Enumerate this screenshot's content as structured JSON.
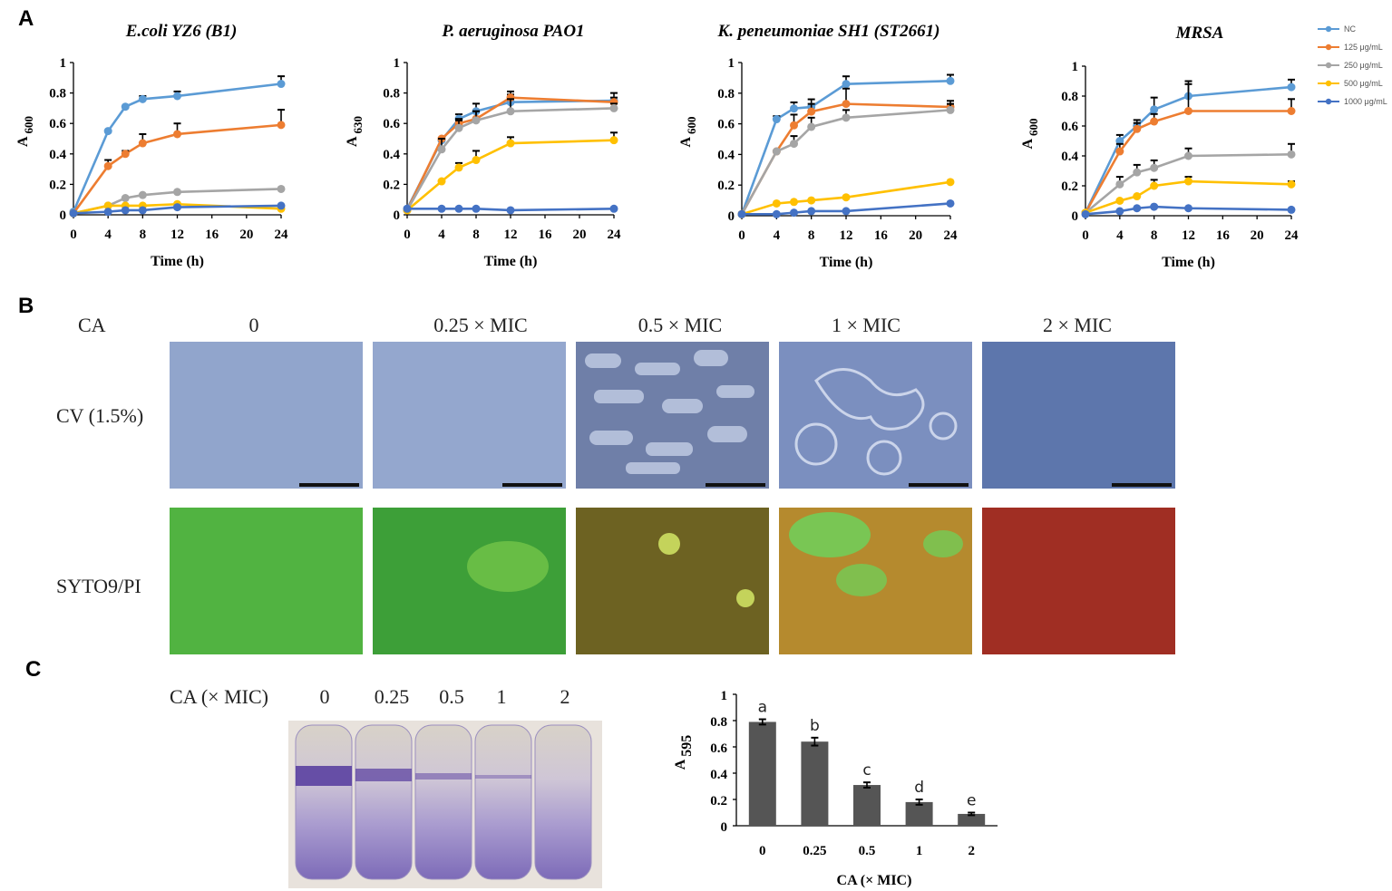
{
  "panel_labels": [
    "A",
    "B",
    "C"
  ],
  "legend": [
    {
      "label": "NC",
      "color": "#5b9bd5"
    },
    {
      "label": "125 μg/mL",
      "color": "#ed7d31"
    },
    {
      "label": "250 μg/mL",
      "color": "#a5a5a5"
    },
    {
      "label": "500 μg/mL",
      "color": "#ffc000"
    },
    {
      "label": "1000 μg/mL",
      "color": "#4472c4"
    }
  ],
  "panel_b": {
    "ca_label": "CA",
    "columns": [
      "0",
      "0.25 × MIC",
      "0.5 × MIC",
      "1 × MIC",
      "2 × MIC"
    ],
    "rows": [
      "CV (1.5%)",
      "SYTO9/PI"
    ]
  },
  "panel_c_photo": {
    "ca_label": "CA (× MIC)",
    "columns": [
      "0",
      "0.25",
      "0.5",
      "1",
      "2"
    ]
  },
  "chart_data": [
    {
      "type": "line",
      "title": "E.coli YZ6 (B1)",
      "xlabel": "Time (h)",
      "ylabel_main": "A",
      "ylabel_sub": "600",
      "xlim": [
        0,
        24
      ],
      "xticks": [
        0,
        4,
        8,
        12,
        16,
        20,
        24
      ],
      "ylim": [
        0,
        1
      ],
      "yticks": [
        0,
        0.2,
        0.4,
        0.6,
        0.8,
        1
      ],
      "x": [
        0,
        4,
        6,
        8,
        12,
        24
      ],
      "series": [
        {
          "name": "NC",
          "values": [
            0.02,
            0.55,
            0.71,
            0.76,
            0.78,
            0.86
          ],
          "err": [
            0,
            0,
            0,
            0.02,
            0.03,
            0.05
          ]
        },
        {
          "name": "125 μg/mL",
          "values": [
            0.01,
            0.32,
            0.4,
            0.47,
            0.53,
            0.59
          ],
          "err": [
            0,
            0.04,
            0.02,
            0.06,
            0.07,
            0.1
          ]
        },
        {
          "name": "250 μg/mL",
          "values": [
            0.01,
            0.06,
            0.11,
            0.13,
            0.15,
            0.17
          ],
          "err": [
            0,
            0,
            0,
            0,
            0,
            0
          ]
        },
        {
          "name": "500 μg/mL",
          "values": [
            0.01,
            0.06,
            0.06,
            0.06,
            0.07,
            0.04
          ],
          "err": [
            0,
            0,
            0,
            0,
            0,
            0
          ]
        },
        {
          "name": "1000 μg/mL",
          "values": [
            0.01,
            0.02,
            0.03,
            0.03,
            0.05,
            0.06
          ],
          "err": [
            0,
            0,
            0,
            0,
            0,
            0
          ]
        }
      ]
    },
    {
      "type": "line",
      "title": "P. aeruginosa PAO1",
      "xlabel": "Time (h)",
      "ylabel_main": "A",
      "ylabel_sub": "630",
      "xlim": [
        0,
        24
      ],
      "xticks": [
        0,
        4,
        8,
        12,
        16,
        20,
        24
      ],
      "ylim": [
        0,
        1
      ],
      "yticks": [
        0,
        0.2,
        0.4,
        0.6,
        0.8,
        1
      ],
      "x": [
        0,
        4,
        6,
        8,
        12,
        24
      ],
      "series": [
        {
          "name": "NC",
          "values": [
            0.04,
            0.49,
            0.63,
            0.68,
            0.74,
            0.75
          ],
          "err": [
            0,
            0,
            0.03,
            0.05,
            0.05,
            0.05
          ]
        },
        {
          "name": "125 μg/mL",
          "values": [
            0.03,
            0.5,
            0.6,
            0.63,
            0.77,
            0.74
          ],
          "err": [
            0,
            0,
            0.03,
            0.05,
            0.04,
            0.03
          ]
        },
        {
          "name": "250 μg/mL",
          "values": [
            0.03,
            0.43,
            0.57,
            0.62,
            0.68,
            0.7
          ],
          "err": [
            0,
            0.07,
            0.05,
            0.06,
            0.08,
            0.03
          ]
        },
        {
          "name": "500 μg/mL",
          "values": [
            0.03,
            0.22,
            0.31,
            0.36,
            0.47,
            0.49
          ],
          "err": [
            0,
            0,
            0.03,
            0.06,
            0.04,
            0.05
          ]
        },
        {
          "name": "1000 μg/mL",
          "values": [
            0.04,
            0.04,
            0.04,
            0.04,
            0.03,
            0.04
          ],
          "err": [
            0,
            0,
            0,
            0,
            0,
            0
          ]
        }
      ]
    },
    {
      "type": "line",
      "title": "K. peneumoniae SH1 (ST2661)",
      "xlabel": "Time (h)",
      "ylabel_main": "A",
      "ylabel_sub": "600",
      "xlim": [
        0,
        24
      ],
      "xticks": [
        0,
        4,
        8,
        12,
        16,
        20,
        24
      ],
      "ylim": [
        0,
        1
      ],
      "yticks": [
        0,
        0.2,
        0.4,
        0.6,
        0.8,
        1
      ],
      "x": [
        0,
        4,
        6,
        8,
        12,
        24
      ],
      "series": [
        {
          "name": "NC",
          "values": [
            0.01,
            0.63,
            0.7,
            0.71,
            0.86,
            0.88
          ],
          "err": [
            0,
            0.02,
            0.04,
            0.05,
            0.05,
            0.04
          ]
        },
        {
          "name": "125 μg/mL",
          "values": [
            0.01,
            0.42,
            0.59,
            0.68,
            0.73,
            0.71
          ],
          "err": [
            0,
            0,
            0.07,
            0.05,
            0.1,
            0.04
          ]
        },
        {
          "name": "250 μg/mL",
          "values": [
            0.01,
            0.42,
            0.47,
            0.58,
            0.64,
            0.69
          ],
          "err": [
            0,
            0,
            0.05,
            0.06,
            0.05,
            0.04
          ]
        },
        {
          "name": "500 μg/mL",
          "values": [
            0.01,
            0.08,
            0.09,
            0.1,
            0.12,
            0.22
          ],
          "err": [
            0,
            0,
            0,
            0,
            0,
            0
          ]
        },
        {
          "name": "1000 μg/mL",
          "values": [
            0.01,
            0.01,
            0.02,
            0.03,
            0.03,
            0.08
          ],
          "err": [
            0,
            0,
            0,
            0,
            0,
            0
          ]
        }
      ]
    },
    {
      "type": "line",
      "title": "MRSA",
      "xlabel": "Time (h)",
      "ylabel_main": "A",
      "ylabel_sub": "600",
      "xlim": [
        0,
        24
      ],
      "xticks": [
        0,
        4,
        8,
        12,
        16,
        20,
        24
      ],
      "ylim": [
        0,
        1
      ],
      "yticks": [
        0,
        0.2,
        0.4,
        0.6,
        0.8,
        1
      ],
      "x": [
        0,
        4,
        6,
        8,
        12,
        24
      ],
      "series": [
        {
          "name": "NC",
          "values": [
            0.02,
            0.5,
            0.6,
            0.71,
            0.8,
            0.86
          ],
          "err": [
            0,
            0.04,
            0.04,
            0.08,
            0.08,
            0.05
          ]
        },
        {
          "name": "125 μg/mL",
          "values": [
            0.02,
            0.43,
            0.58,
            0.63,
            0.7,
            0.7
          ],
          "err": [
            0,
            0.05,
            0.04,
            0.05,
            0.2,
            0.08
          ]
        },
        {
          "name": "250 μg/mL",
          "values": [
            0.02,
            0.21,
            0.29,
            0.32,
            0.4,
            0.41
          ],
          "err": [
            0,
            0.05,
            0.05,
            0.05,
            0.05,
            0.07
          ]
        },
        {
          "name": "500 μg/mL",
          "values": [
            0.02,
            0.1,
            0.13,
            0.2,
            0.23,
            0.21
          ],
          "err": [
            0,
            0,
            0,
            0.04,
            0.03,
            0.02
          ]
        },
        {
          "name": "1000 μg/mL",
          "values": [
            0.01,
            0.03,
            0.05,
            0.06,
            0.05,
            0.04
          ],
          "err": [
            0,
            0,
            0,
            0,
            0,
            0
          ]
        }
      ]
    },
    {
      "type": "bar",
      "title": "",
      "xlabel": "CA (× MIC)",
      "ylabel_main": "A",
      "ylabel_sub": "595",
      "categories": [
        "0",
        "0.25",
        "0.5",
        "1",
        "2"
      ],
      "values": [
        0.79,
        0.64,
        0.31,
        0.18,
        0.09
      ],
      "err": [
        0.02,
        0.03,
        0.02,
        0.02,
        0.01
      ],
      "significance": [
        "a",
        "b",
        "c",
        "d",
        "e"
      ],
      "ylim": [
        0,
        1
      ],
      "yticks": [
        0,
        0.2,
        0.4,
        0.6,
        0.8,
        1
      ],
      "color": "#555555"
    }
  ]
}
